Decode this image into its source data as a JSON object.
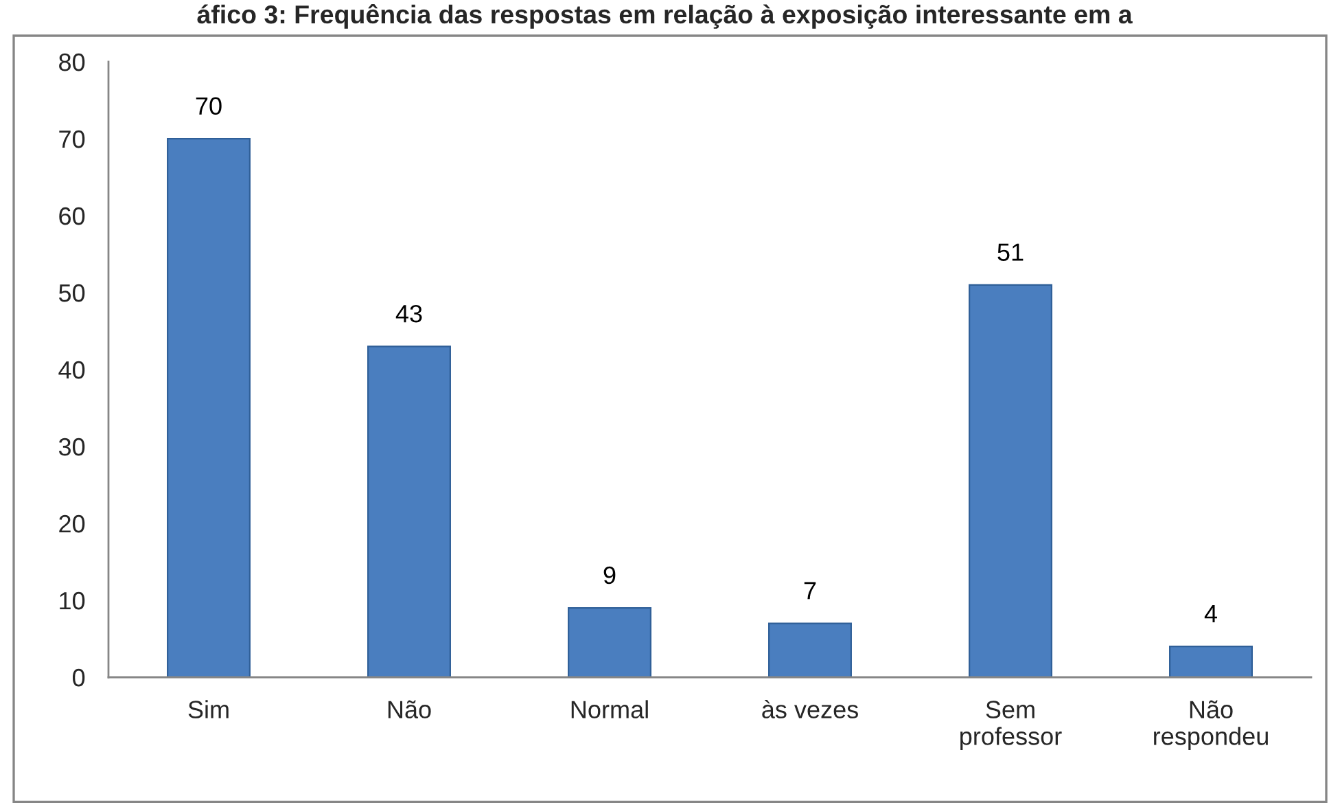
{
  "chart_data": {
    "type": "bar",
    "title": "áfico 3: Frequência das respostas em relação à exposição interessante em a",
    "categories": [
      "Sim",
      "Não",
      "Normal",
      "às vezes",
      "Sem\nprofessor",
      "Não\nrespondeu"
    ],
    "values": [
      70,
      43,
      9,
      7,
      51,
      4
    ],
    "color": "#4a7ebf",
    "ylim": [
      0,
      80
    ],
    "yticks": [
      0,
      10,
      20,
      30,
      40,
      50,
      60,
      70,
      80
    ],
    "data_labels": true,
    "grid": false,
    "legend": false
  }
}
